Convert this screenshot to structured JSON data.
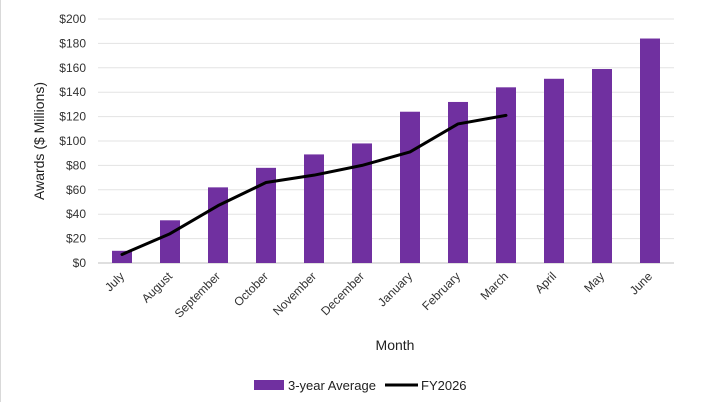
{
  "chart_data": {
    "type": "bar",
    "categories": [
      "July",
      "August",
      "September",
      "October",
      "November",
      "December",
      "January",
      "February",
      "March",
      "April",
      "May",
      "June"
    ],
    "series": [
      {
        "name": "3-year Average",
        "type": "bar",
        "color": "#7030a0",
        "values": [
          10,
          35,
          62,
          78,
          89,
          98,
          124,
          132,
          144,
          151,
          159,
          184
        ]
      },
      {
        "name": "FY2026",
        "type": "line",
        "color": "#000000",
        "values": [
          7,
          24,
          47,
          66,
          72,
          80,
          91,
          114,
          121,
          null,
          null,
          null
        ]
      }
    ],
    "xlabel": "Month",
    "ylabel": "Awards ($ Millions)",
    "ylim": [
      0,
      200
    ],
    "yticks": [
      "$0",
      "$20",
      "$40",
      "$60",
      "$80",
      "$100",
      "$120",
      "$140",
      "$160",
      "$180",
      "$200"
    ],
    "ytick_values": [
      0,
      20,
      40,
      60,
      80,
      100,
      120,
      140,
      160,
      180,
      200
    ],
    "grid": true,
    "legend_position": "bottom"
  }
}
